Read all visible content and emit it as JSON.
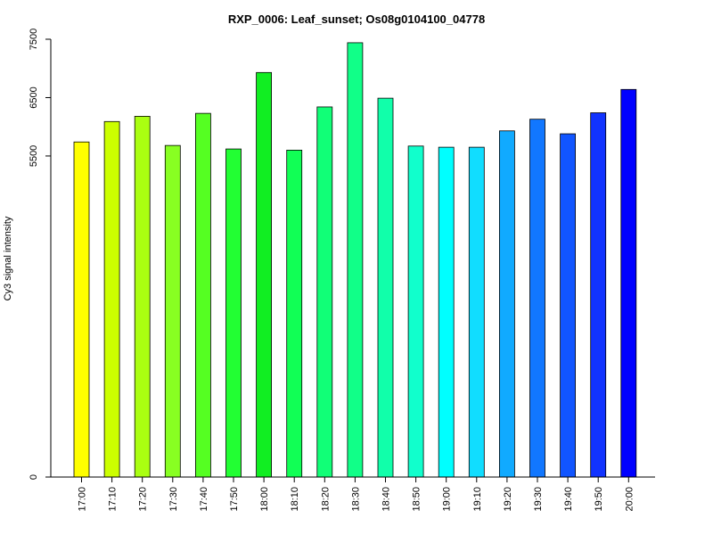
{
  "chart_data": {
    "type": "bar",
    "title": "RXP_0006: Leaf_sunset; Os08g0104100_04778",
    "xlabel": "",
    "ylabel": "Cy3 signal intensity",
    "categories": [
      "17:00",
      "17:10",
      "17:20",
      "17:30",
      "17:40",
      "17:50",
      "18:00",
      "18:10",
      "18:20",
      "18:30",
      "18:40",
      "18:50",
      "19:00",
      "19:10",
      "19:20",
      "19:30",
      "19:40",
      "19:50",
      "20:00"
    ],
    "values": [
      5740,
      6090,
      6180,
      5680,
      6230,
      5620,
      6930,
      5600,
      6340,
      7440,
      6490,
      5670,
      5650,
      5650,
      5930,
      6130,
      5880,
      6240,
      6640
    ],
    "colors": [
      "#ffff00",
      "#ccff00",
      "#aaff11",
      "#88ff22",
      "#55ff22",
      "#22ff33",
      "#11ee22",
      "#11ff55",
      "#11ff77",
      "#11ff88",
      "#11ffaa",
      "#11ffcc",
      "#00ffff",
      "#11ddff",
      "#11aaff",
      "#1177ff",
      "#1155ff",
      "#1133ff",
      "#0000ff"
    ],
    "yticks": [
      0,
      5500,
      6500,
      7500
    ],
    "ylim": [
      0,
      7500
    ],
    "grid": false,
    "legend": "none"
  }
}
